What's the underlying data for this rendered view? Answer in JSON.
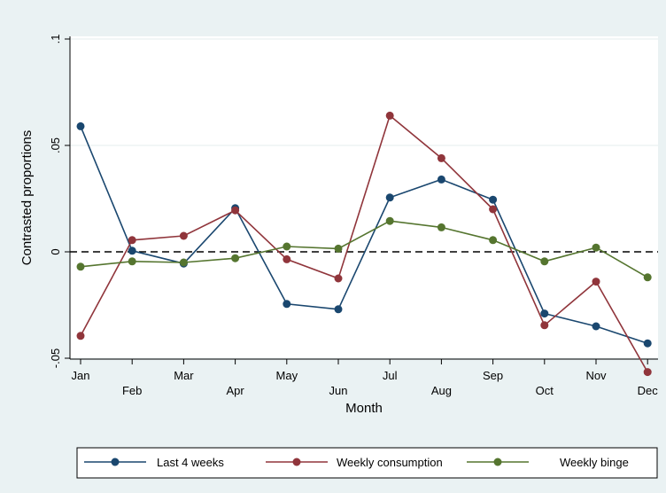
{
  "chart_data": {
    "type": "line",
    "title": "",
    "xlabel": "Month",
    "ylabel": "Contrasted proportions",
    "categories": [
      "Jan",
      "Feb",
      "Mar",
      "Apr",
      "May",
      "Jun",
      "Jul",
      "Aug",
      "Sep",
      "Oct",
      "Nov",
      "Dec"
    ],
    "ylim": [
      -0.05,
      0.1
    ],
    "yticks": [
      -0.05,
      0,
      0.05,
      0.1
    ],
    "ytick_labels": [
      "-.05",
      "0",
      ".05",
      ".1"
    ],
    "reference_line": 0,
    "grid": true,
    "legend_position": "bottom",
    "series": [
      {
        "name": "Last 4 weeks",
        "color": "#1a476f",
        "values": [
          0.059,
          0.0005,
          -0.0055,
          0.0205,
          -0.0245,
          -0.027,
          0.0255,
          0.034,
          0.0245,
          -0.029,
          -0.035,
          -0.043
        ]
      },
      {
        "name": "Weekly consumption",
        "color": "#90353b",
        "values": [
          -0.0395,
          0.0055,
          0.0075,
          0.0195,
          -0.0035,
          -0.0125,
          0.064,
          0.044,
          0.02,
          -0.0345,
          -0.014,
          -0.0565
        ]
      },
      {
        "name": "Weekly binge",
        "color": "#55752f",
        "values": [
          -0.007,
          -0.0045,
          -0.005,
          -0.003,
          0.0025,
          0.0015,
          0.0145,
          0.0115,
          0.0055,
          -0.0045,
          0.002,
          -0.012
        ]
      }
    ]
  }
}
